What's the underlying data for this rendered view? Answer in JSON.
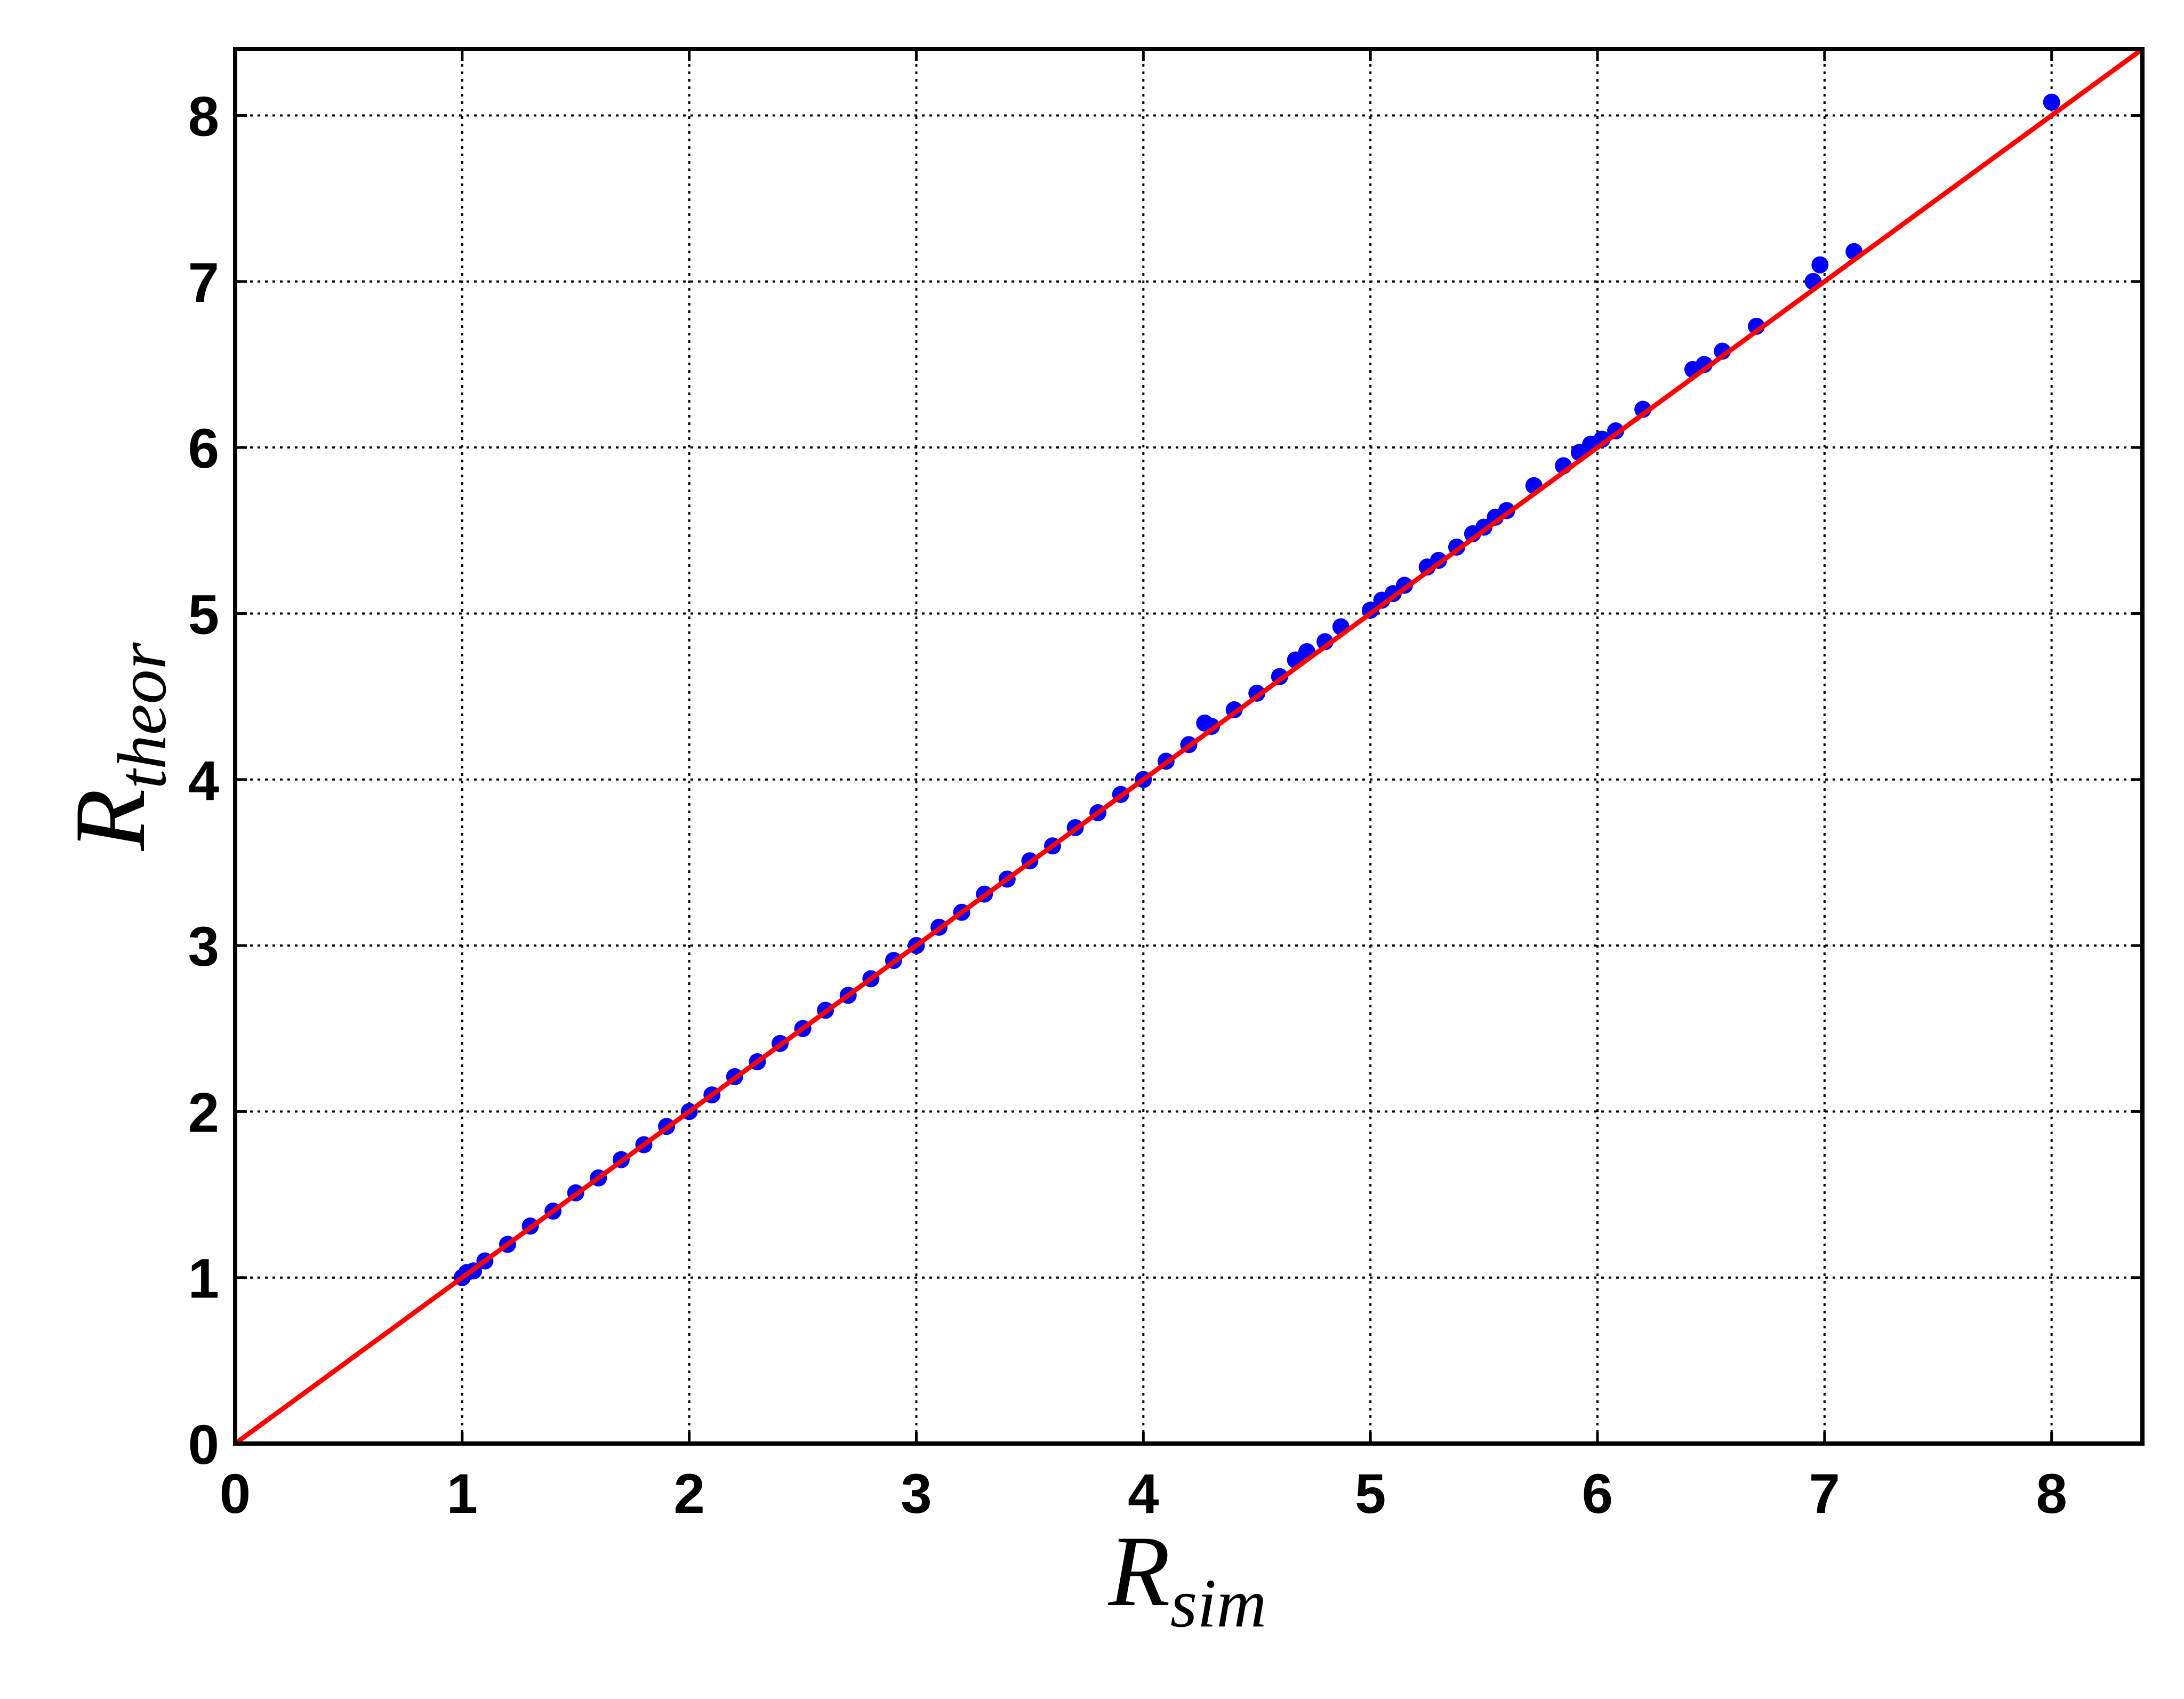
{
  "chart_data": {
    "type": "scatter",
    "xlabel": {
      "text": "R",
      "subscript": "sim"
    },
    "ylabel": {
      "text": "R",
      "subscript": "theor"
    },
    "xlim": [
      0,
      8.4
    ],
    "ylim": [
      0,
      8.4
    ],
    "xticks": [
      0,
      1,
      2,
      3,
      4,
      5,
      6,
      7,
      8
    ],
    "yticks": [
      0,
      1,
      2,
      3,
      4,
      5,
      6,
      7,
      8
    ],
    "grid": true,
    "points": {
      "color": "#0000ff",
      "x": [
        1.0,
        1.02,
        1.05,
        1.1,
        1.2,
        1.3,
        1.4,
        1.5,
        1.6,
        1.7,
        1.8,
        1.9,
        2.0,
        2.1,
        2.2,
        2.3,
        2.4,
        2.5,
        2.6,
        2.7,
        2.8,
        2.9,
        3.0,
        3.1,
        3.2,
        3.3,
        3.4,
        3.5,
        3.6,
        3.7,
        3.8,
        3.9,
        4.0,
        4.1,
        4.2,
        4.27,
        4.3,
        4.4,
        4.5,
        4.6,
        4.67,
        4.72,
        4.8,
        4.87,
        5.0,
        5.05,
        5.1,
        5.15,
        5.25,
        5.3,
        5.38,
        5.45,
        5.5,
        5.55,
        5.6,
        5.72,
        5.85,
        5.92,
        5.97,
        6.02,
        6.08,
        6.2,
        6.42,
        6.47,
        6.55,
        6.7,
        6.95,
        6.98,
        7.13,
        8.0
      ],
      "y": [
        1.0,
        1.03,
        1.04,
        1.1,
        1.2,
        1.31,
        1.4,
        1.51,
        1.6,
        1.71,
        1.8,
        1.91,
        2.0,
        2.1,
        2.21,
        2.3,
        2.41,
        2.5,
        2.61,
        2.7,
        2.8,
        2.91,
        3.0,
        3.11,
        3.2,
        3.31,
        3.4,
        3.51,
        3.6,
        3.71,
        3.8,
        3.91,
        4.0,
        4.11,
        4.21,
        4.34,
        4.32,
        4.42,
        4.52,
        4.62,
        4.72,
        4.77,
        4.83,
        4.92,
        5.02,
        5.08,
        5.12,
        5.17,
        5.28,
        5.32,
        5.4,
        5.48,
        5.52,
        5.58,
        5.62,
        5.77,
        5.89,
        5.97,
        6.02,
        6.05,
        6.1,
        6.23,
        6.47,
        6.5,
        6.58,
        6.73,
        7.0,
        7.1,
        7.18,
        8.08
      ]
    },
    "reference_line": {
      "color": "#ff0000",
      "x": [
        0,
        8.4
      ],
      "y": [
        0,
        8.4
      ]
    }
  }
}
